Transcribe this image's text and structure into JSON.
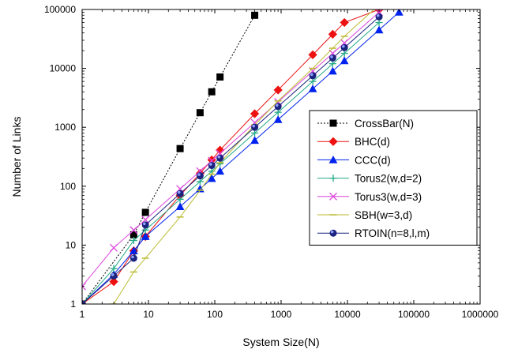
{
  "chart_data": {
    "type": "line",
    "title": "",
    "xlabel": "System Size(N)",
    "ylabel": "Number of Links",
    "x_scale": "log",
    "y_scale": "log",
    "xlim": [
      1,
      1000000
    ],
    "ylim": [
      1,
      100000
    ],
    "x_ticks": [
      "1",
      "10",
      "100",
      "1000",
      "10000",
      "100000",
      "1000000"
    ],
    "y_ticks": [
      "1",
      "10",
      "100",
      "1000",
      "10000",
      "100000"
    ],
    "grid": false,
    "legend_position": "right",
    "series": [
      {
        "name": "CrossBar(N)",
        "color": "#000000",
        "marker": "square",
        "x": [
          1,
          6,
          9,
          30,
          60,
          90,
          120,
          400
        ],
        "y": [
          1,
          15,
          36,
          435,
          1770,
          4005,
          7140,
          79800
        ]
      },
      {
        "name": "BHC(d)",
        "color": "#ee1111",
        "marker": "diamond",
        "x": [
          1,
          3,
          6,
          9,
          30,
          60,
          90,
          120,
          400,
          900,
          3000,
          6000,
          9000,
          30000
        ],
        "y": [
          1,
          2.4,
          8,
          14,
          70,
          165,
          280,
          410,
          1700,
          4300,
          17000,
          38000,
          60000,
          100000
        ]
      },
      {
        "name": "CCC(d)",
        "color": "#0022ee",
        "marker": "triangle",
        "x": [
          1,
          3,
          6,
          9,
          30,
          60,
          90,
          120,
          400,
          900,
          3000,
          6000,
          9000,
          30000,
          60000
        ],
        "y": [
          1,
          3.2,
          8,
          14,
          45,
          90,
          135,
          180,
          600,
          1350,
          4500,
          9000,
          13500,
          45000,
          90000
        ]
      },
      {
        "name": "Torus2(w,d=2)",
        "color": "#22aa88",
        "marker": "plus",
        "x": [
          1,
          3,
          6,
          9,
          30,
          60,
          90,
          120,
          400,
          900,
          3000,
          6000,
          9000,
          30000
        ],
        "y": [
          1,
          4,
          12,
          18,
          60,
          120,
          180,
          240,
          800,
          1800,
          6000,
          12000,
          18000,
          60000
        ]
      },
      {
        "name": "Torus3(w,d=3)",
        "color": "#dd44dd",
        "marker": "x",
        "x": [
          1,
          3,
          6,
          9,
          30,
          60,
          90,
          120,
          400,
          900,
          3000,
          6000,
          9000,
          30000
        ],
        "y": [
          2,
          9,
          18,
          27,
          90,
          180,
          270,
          360,
          1200,
          2700,
          9000,
          18000,
          27000,
          90000
        ]
      },
      {
        "name": "SBH(w=3,d)",
        "color": "#bbbb33",
        "marker": "dash",
        "x": [
          3,
          6,
          9,
          30,
          60,
          90,
          120,
          400,
          900,
          3000,
          6000,
          9000,
          30000
        ],
        "y": [
          1,
          3.5,
          6,
          30,
          85,
          160,
          250,
          1100,
          2800,
          10000,
          22000,
          35000,
          120000
        ]
      },
      {
        "name": "RTOIN(n=8,l,m)",
        "color": "#1a237e",
        "marker": "circle",
        "x": [
          1,
          3,
          6,
          9,
          30,
          60,
          90,
          120,
          400,
          900,
          3000,
          6000,
          9000,
          30000
        ],
        "y": [
          1,
          3,
          6,
          22,
          75,
          150,
          225,
          300,
          1000,
          2250,
          7500,
          15000,
          22500,
          75000
        ]
      }
    ]
  }
}
